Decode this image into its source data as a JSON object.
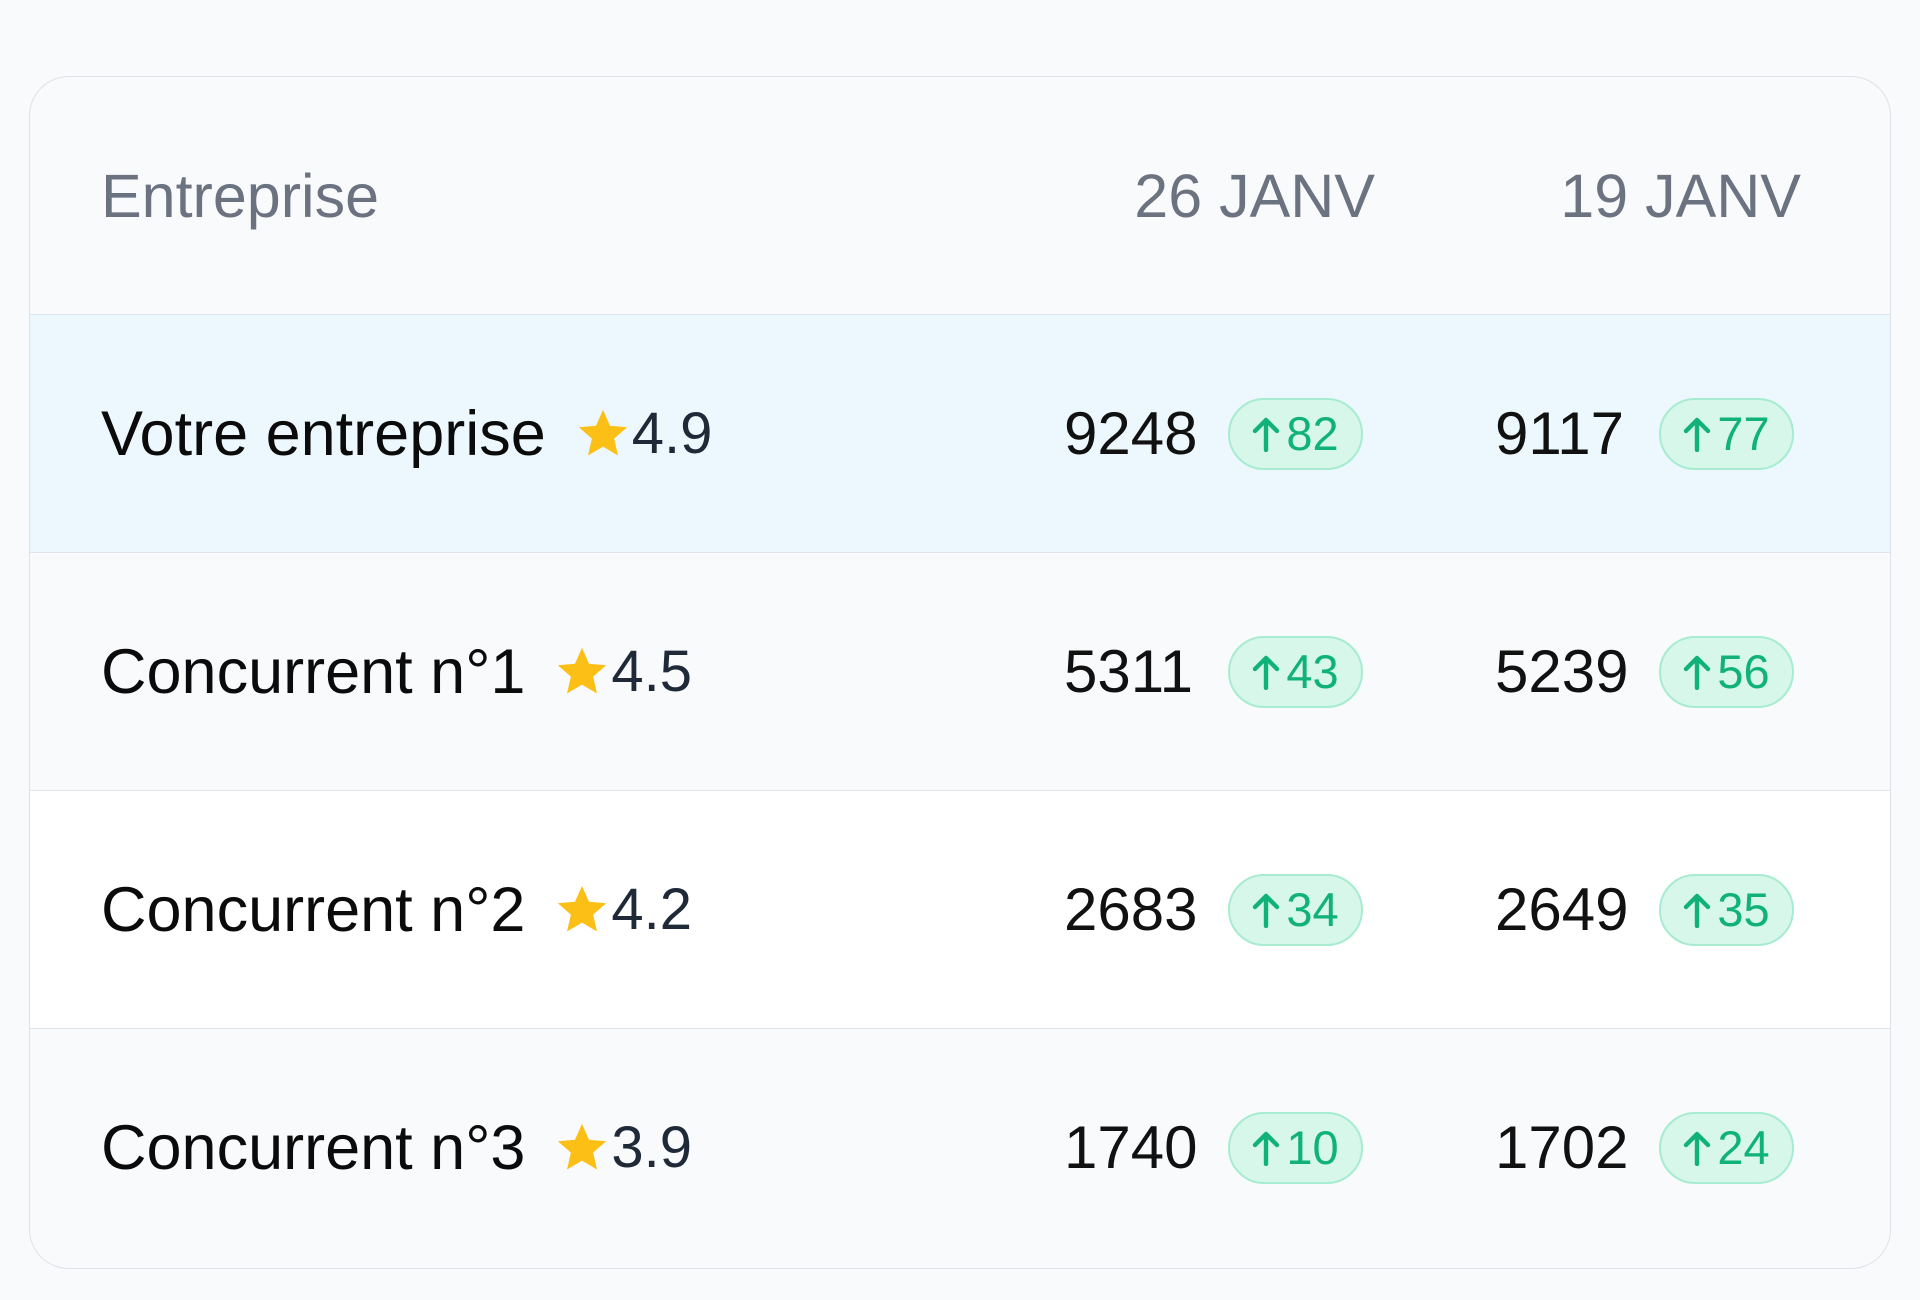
{
  "header": {
    "columns": [
      "Entreprise",
      "26 JANV",
      "19 JANV"
    ]
  },
  "rows": [
    {
      "name": "Votre entreprise",
      "rating": 4.9,
      "weeks": [
        {
          "value": 9248,
          "change": 82
        },
        {
          "value": 9117,
          "change": 77
        }
      ]
    },
    {
      "name": "Concurrent n°1",
      "rating": 4.5,
      "weeks": [
        {
          "value": 5311,
          "change": 43
        },
        {
          "value": 5239,
          "change": 56
        }
      ]
    },
    {
      "name": "Concurrent n°2",
      "rating": 4.2,
      "weeks": [
        {
          "value": 2683,
          "change": 34
        },
        {
          "value": 2649,
          "change": 35
        }
      ]
    },
    {
      "name": "Concurrent n°3",
      "rating": 3.9,
      "weeks": [
        {
          "value": 1740,
          "change": 10
        },
        {
          "value": 1702,
          "change": 24
        }
      ]
    }
  ]
}
